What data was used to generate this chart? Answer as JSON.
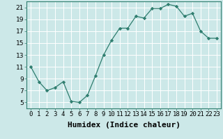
{
  "xlabel": "Humidex (Indice chaleur)",
  "x_values": [
    0,
    1,
    2,
    3,
    4,
    5,
    6,
    7,
    8,
    9,
    10,
    11,
    12,
    13,
    14,
    15,
    16,
    17,
    18,
    19,
    20,
    21,
    22,
    23
  ],
  "y_values": [
    11,
    8.5,
    7,
    7.5,
    8.5,
    5.2,
    5.0,
    6.2,
    9.5,
    13,
    15.5,
    17.5,
    17.5,
    19.5,
    19.2,
    20.8,
    20.8,
    21.5,
    21.2,
    19.5,
    20.0,
    17.0,
    15.8,
    15.8
  ],
  "line_color": "#2e7d6e",
  "marker": "D",
  "marker_size": 2.2,
  "bg_color": "#cce8e8",
  "grid_color": "#ffffff",
  "ylim": [
    4,
    22
  ],
  "xlim": [
    -0.5,
    23.5
  ],
  "yticks": [
    5,
    7,
    9,
    11,
    13,
    15,
    17,
    19,
    21
  ],
  "xtick_labels": [
    "0",
    "1",
    "2",
    "3",
    "4",
    "5",
    "6",
    "7",
    "8",
    "9",
    "10",
    "11",
    "12",
    "13",
    "14",
    "15",
    "16",
    "17",
    "18",
    "19",
    "20",
    "21",
    "22",
    "23"
  ],
  "tick_fontsize": 6.5,
  "xlabel_fontsize": 8.0
}
